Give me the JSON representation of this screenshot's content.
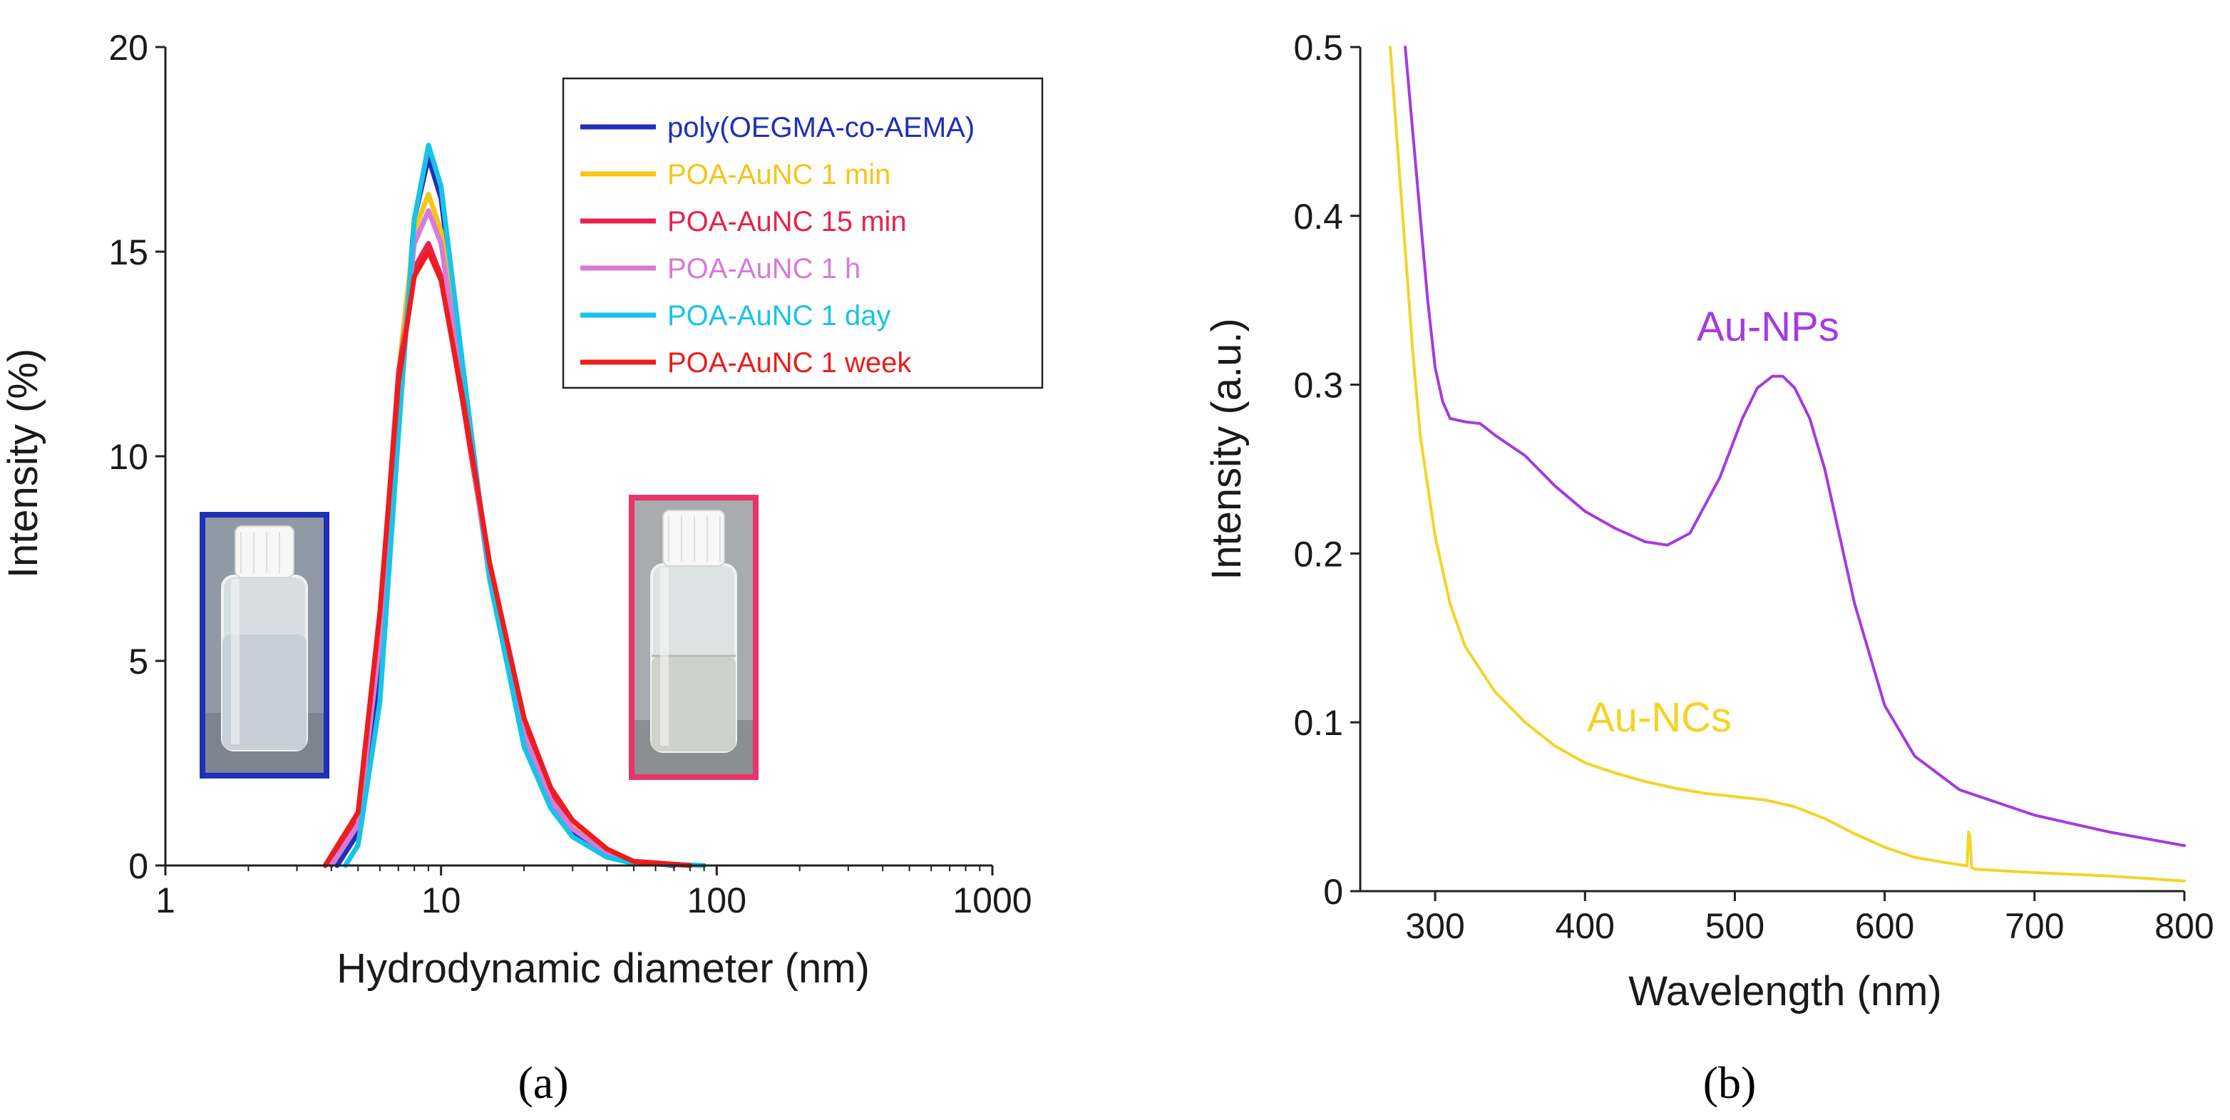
{
  "chart_data": [
    {
      "panel": "(a)",
      "type": "line",
      "title": "",
      "xlabel": "Hydrodynamic diameter (nm)",
      "ylabel": "Intensity (%)",
      "xscale": "log",
      "xlim": [
        1,
        1000
      ],
      "ylim": [
        0,
        20
      ],
      "xticks": [
        1,
        10,
        100,
        1000
      ],
      "xtick_labels": [
        "1",
        "10",
        "100",
        "1000"
      ],
      "yticks": [
        0,
        5,
        10,
        15,
        20
      ],
      "ytick_labels": [
        "0",
        "5",
        "10",
        "15",
        "20"
      ],
      "grid": false,
      "legend_position": "top-right",
      "series": [
        {
          "name": "poly(OEGMA-co-AEMA)",
          "color": "#1f2fb8",
          "x": [
            4.2,
            5,
            6,
            7,
            8,
            9,
            10,
            12,
            15,
            20,
            25,
            30,
            40,
            50,
            70
          ],
          "y": [
            0,
            0.8,
            4.5,
            11,
            15.8,
            17.3,
            16.3,
            12,
            7,
            3,
            1.5,
            0.8,
            0.3,
            0.1,
            0
          ]
        },
        {
          "name": "POA-AuNC 1 min",
          "color": "#f5c518",
          "x": [
            4,
            5,
            6,
            7,
            8,
            9,
            10,
            12,
            15,
            20,
            25,
            30,
            40,
            50,
            80
          ],
          "y": [
            0,
            1,
            5.5,
            12,
            15.5,
            16.4,
            15.5,
            11.8,
            7.2,
            3.3,
            1.7,
            1,
            0.35,
            0.1,
            0
          ]
        },
        {
          "name": "POA-AuNC 15 min",
          "color": "#e8224f",
          "x": [
            3.8,
            5,
            6,
            7,
            8,
            9,
            10,
            12,
            15,
            20,
            25,
            30,
            40,
            50,
            80
          ],
          "y": [
            0,
            1.2,
            6,
            12,
            14.6,
            15.2,
            14.4,
            11.3,
            7.2,
            3.5,
            1.8,
            1.1,
            0.4,
            0.1,
            0
          ]
        },
        {
          "name": "POA-AuNC 1 h",
          "color": "#d77ad8",
          "x": [
            4,
            5,
            6,
            7,
            8,
            9,
            10,
            12,
            15,
            20,
            25,
            30,
            40,
            50,
            80
          ],
          "y": [
            0,
            1,
            5.5,
            11.5,
            15.2,
            16,
            15.2,
            11.6,
            7,
            3.2,
            1.6,
            0.9,
            0.3,
            0.1,
            0
          ]
        },
        {
          "name": "POA-AuNC 1 day",
          "color": "#18c3e8",
          "x": [
            4.5,
            5,
            6,
            7,
            8,
            9,
            10,
            12,
            15,
            20,
            25,
            30,
            40,
            50,
            90
          ],
          "y": [
            0,
            0.5,
            4,
            10.5,
            15.8,
            17.6,
            16.6,
            12.2,
            7,
            2.9,
            1.4,
            0.7,
            0.2,
            0.05,
            0
          ]
        },
        {
          "name": "POA-AuNC 1 week",
          "color": "#ee1c1c",
          "x": [
            3.8,
            5,
            6,
            7,
            8,
            9,
            10,
            12,
            15,
            20,
            25,
            30,
            40,
            50,
            80
          ],
          "y": [
            0,
            1.3,
            6.2,
            11.8,
            14.4,
            15,
            14.3,
            11.4,
            7.4,
            3.6,
            1.9,
            1.1,
            0.4,
            0.1,
            0
          ]
        }
      ],
      "insets": [
        {
          "frame_color": "#1f2fb8",
          "content": "vial photo, colorless solution"
        },
        {
          "frame_color": "#e8336b",
          "content": "vial photo, colorless solution"
        }
      ]
    },
    {
      "panel": "(b)",
      "type": "line",
      "title": "",
      "xlabel": "Wavelength (nm)",
      "ylabel": "Intensity (a.u.)",
      "xlim": [
        250,
        800
      ],
      "ylim": [
        0,
        0.5
      ],
      "xticks": [
        300,
        400,
        500,
        600,
        700,
        800
      ],
      "xtick_labels": [
        "300",
        "400",
        "500",
        "600",
        "700",
        "800"
      ],
      "yticks": [
        0,
        0.1,
        0.2,
        0.3,
        0.4,
        0.5
      ],
      "ytick_labels": [
        "0",
        "0.1",
        "0.2",
        "0.3",
        "0.4",
        "0.5"
      ],
      "grid": false,
      "series": [
        {
          "name": "Au-NPs",
          "color": "#a43be0",
          "x": [
            280,
            285,
            290,
            295,
            300,
            305,
            310,
            320,
            330,
            340,
            360,
            380,
            400,
            420,
            440,
            455,
            470,
            490,
            505,
            515,
            525,
            532,
            540,
            550,
            560,
            570,
            580,
            600,
            620,
            650,
            700,
            750,
            800
          ],
          "y": [
            0.5,
            0.45,
            0.4,
            0.35,
            0.31,
            0.29,
            0.28,
            0.278,
            0.277,
            0.27,
            0.258,
            0.24,
            0.225,
            0.215,
            0.207,
            0.205,
            0.212,
            0.245,
            0.28,
            0.298,
            0.305,
            0.305,
            0.298,
            0.28,
            0.25,
            0.21,
            0.17,
            0.11,
            0.08,
            0.06,
            0.045,
            0.035,
            0.027
          ]
        },
        {
          "name": "Au-NCs",
          "color": "#f5d327",
          "x": [
            270,
            275,
            280,
            285,
            290,
            300,
            310,
            320,
            340,
            360,
            380,
            400,
            420,
            440,
            460,
            480,
            500,
            520,
            540,
            560,
            580,
            600,
            620,
            640,
            655,
            656,
            657,
            658,
            660,
            680,
            700,
            750,
            800
          ],
          "y": [
            0.5,
            0.44,
            0.38,
            0.32,
            0.27,
            0.21,
            0.17,
            0.145,
            0.118,
            0.1,
            0.086,
            0.076,
            0.07,
            0.065,
            0.061,
            0.058,
            0.056,
            0.054,
            0.05,
            0.043,
            0.034,
            0.026,
            0.02,
            0.017,
            0.015,
            0.035,
            0.032,
            0.014,
            0.013,
            0.012,
            0.011,
            0.009,
            0.006
          ]
        }
      ],
      "annotations": [
        {
          "text": "Au-NPs",
          "color": "#a43be0"
        },
        {
          "text": "Au-NCs",
          "color": "#f5d327"
        }
      ]
    }
  ],
  "panel_labels": {
    "a": "(a)",
    "b": "(b)"
  }
}
